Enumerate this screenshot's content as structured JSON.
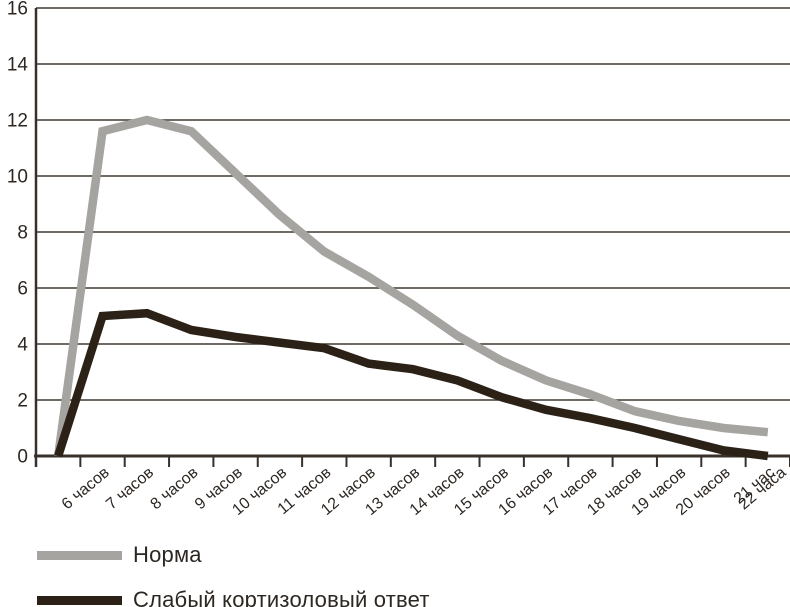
{
  "chart_data": {
    "type": "line",
    "title": "",
    "xlabel": "",
    "ylabel": "",
    "categories": [
      "6 часов",
      "7 часов",
      "8 часов",
      "9 часов",
      "10 часов",
      "11 часов",
      "12 часов",
      "13 часов",
      "14 часов",
      "15 часов",
      "16 часов",
      "17 часов",
      "18 часов",
      "19 часов",
      "20 часов",
      "21 час",
      "22 часа"
    ],
    "series": [
      {
        "name": "Норма",
        "color": "#a6a4a1",
        "values": [
          0,
          11.6,
          12,
          11.6,
          10.1,
          8.6,
          7.3,
          6.4,
          5.4,
          4.3,
          3.4,
          2.7,
          2.2,
          1.6,
          1.25,
          1.0,
          0.85
        ]
      },
      {
        "name": "Слабый кортизоловый ответ",
        "color": "#2b2116",
        "values": [
          0,
          5.0,
          5.1,
          4.5,
          4.25,
          4.05,
          3.85,
          3.3,
          3.1,
          2.7,
          2.1,
          1.65,
          1.35,
          1.0,
          0.6,
          0.2,
          0
        ]
      }
    ],
    "yticks": [
      0,
      2,
      4,
      6,
      8,
      10,
      12,
      14,
      16
    ],
    "ylim": [
      0,
      16
    ],
    "grid": "horizontal",
    "legend_position": "bottom-left",
    "colors": {
      "axis": "#38302a",
      "gridline": "#403830",
      "text": "#2d2722",
      "background": "#ffffff"
    }
  }
}
